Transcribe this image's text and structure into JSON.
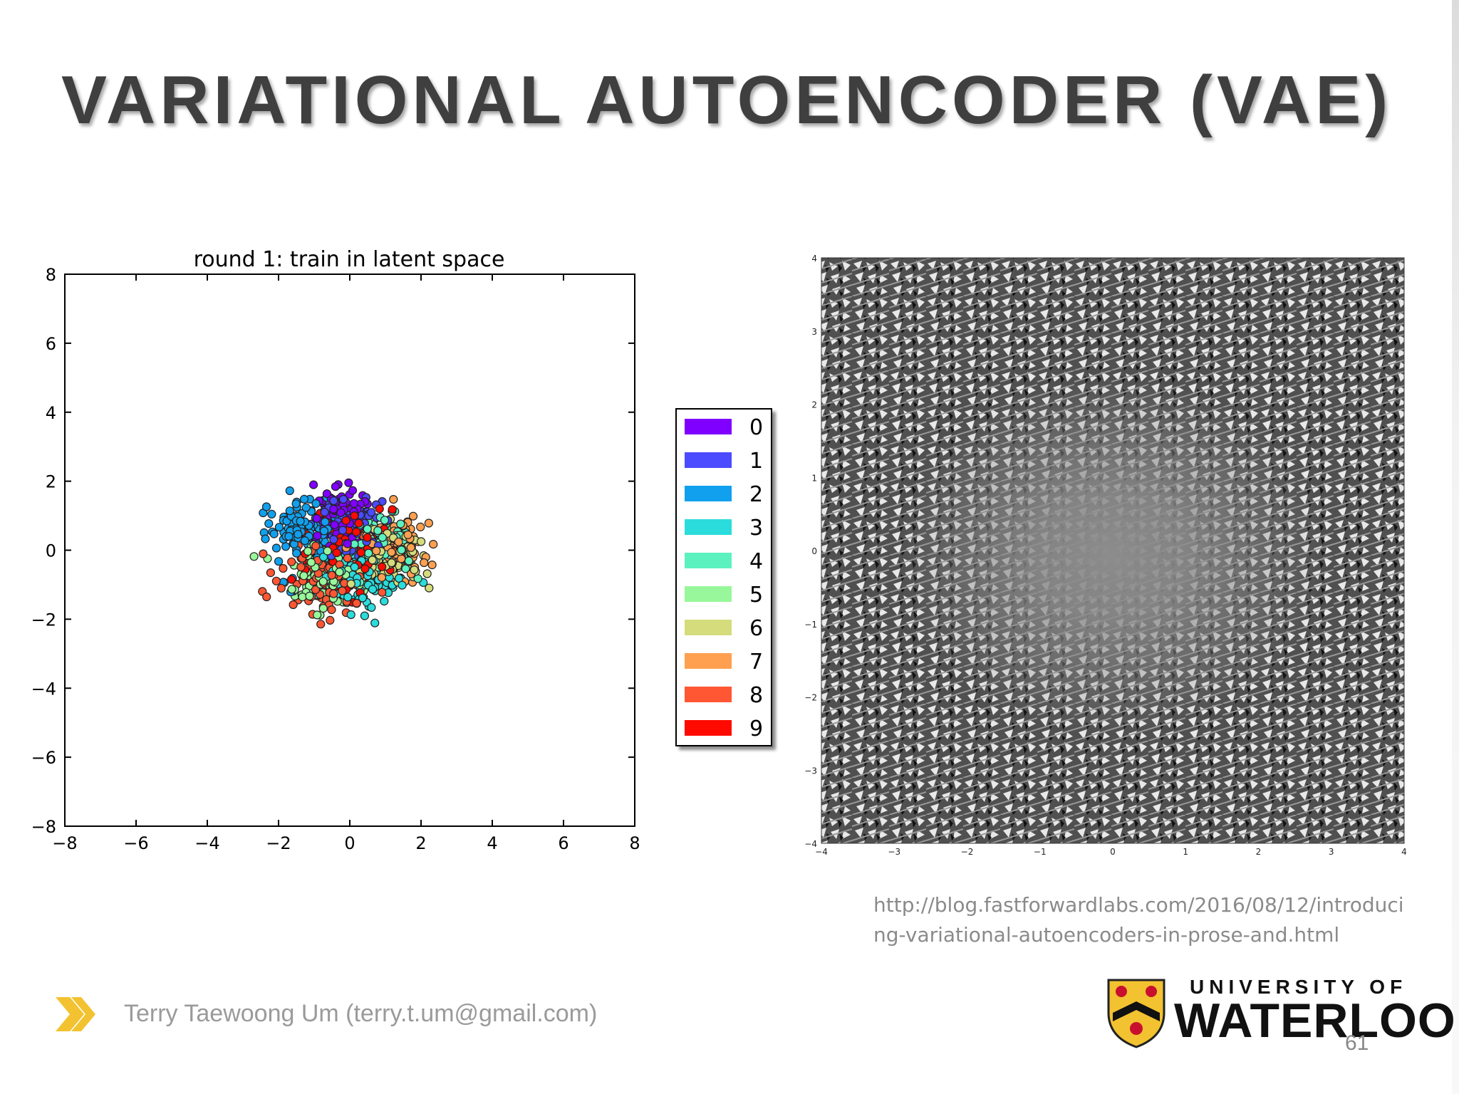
{
  "slide": {
    "title": "VARIATIONAL AUTOENCODER (VAE)",
    "source_url": "http://blog.fastforwardlabs.com/2016/08/12/introducing-variational-autoencoders-in-prose-and.html",
    "author": "Terry Taewoong Um (terry.t.um@gmail.com)",
    "university_line1": "UNIVERSITY OF",
    "university_line2": "WATERLOO",
    "page_number": "61"
  },
  "chart_data": [
    {
      "type": "scatter",
      "title": "round 1: train in latent space",
      "xlabel": "",
      "ylabel": "",
      "xlim": [
        -8,
        8
      ],
      "ylim": [
        -8,
        8
      ],
      "xticks": [
        "−8",
        "−6",
        "−4",
        "−2",
        "0",
        "2",
        "4",
        "6",
        "8"
      ],
      "yticks": [
        "8",
        "6",
        "4",
        "2",
        "0",
        "−2",
        "−4",
        "−6",
        "−8"
      ],
      "grid": false,
      "legend_position": "right-outside",
      "series": [
        {
          "name": "0",
          "color": "#8000ff",
          "center": [
            -0.3,
            1.0
          ],
          "spread": [
            0.45,
            0.4
          ]
        },
        {
          "name": "1",
          "color": "#4b4bff",
          "center": [
            0.1,
            0.6
          ],
          "spread": [
            0.4,
            0.4
          ]
        },
        {
          "name": "2",
          "color": "#10a0ee",
          "center": [
            -1.4,
            0.6
          ],
          "spread": [
            0.45,
            0.45
          ]
        },
        {
          "name": "3",
          "color": "#2bdcdc",
          "center": [
            0.4,
            -0.8
          ],
          "spread": [
            0.6,
            0.5
          ]
        },
        {
          "name": "4",
          "color": "#5cf2c0",
          "center": [
            0.9,
            0.2
          ],
          "spread": [
            0.45,
            0.4
          ]
        },
        {
          "name": "5",
          "color": "#98f79a",
          "center": [
            -0.6,
            -0.7
          ],
          "spread": [
            0.6,
            0.45
          ]
        },
        {
          "name": "6",
          "color": "#d4dc7c",
          "center": [
            1.0,
            -0.2
          ],
          "spread": [
            0.45,
            0.45
          ]
        },
        {
          "name": "7",
          "color": "#ffa050",
          "center": [
            1.4,
            0.0
          ],
          "spread": [
            0.4,
            0.45
          ]
        },
        {
          "name": "8",
          "color": "#ff5733",
          "center": [
            -0.6,
            -0.7
          ],
          "spread": [
            0.7,
            0.55
          ]
        },
        {
          "name": "9",
          "color": "#ff0a00",
          "center": [
            0.2,
            0.2
          ],
          "spread": [
            0.65,
            0.6
          ]
        }
      ]
    },
    {
      "type": "heatmap",
      "title": "",
      "xlim": [
        -4,
        4
      ],
      "ylim": [
        -4,
        4
      ],
      "xticks": [
        "−4",
        "−3",
        "−2",
        "−1",
        "0",
        "1",
        "2",
        "3",
        "4"
      ],
      "yticks": [
        "4",
        "3",
        "2",
        "1",
        "0",
        "−1",
        "−2",
        "−3",
        "−4"
      ],
      "description_colors": [
        "#111111",
        "#ffffff",
        "#8a8a8a"
      ]
    }
  ]
}
